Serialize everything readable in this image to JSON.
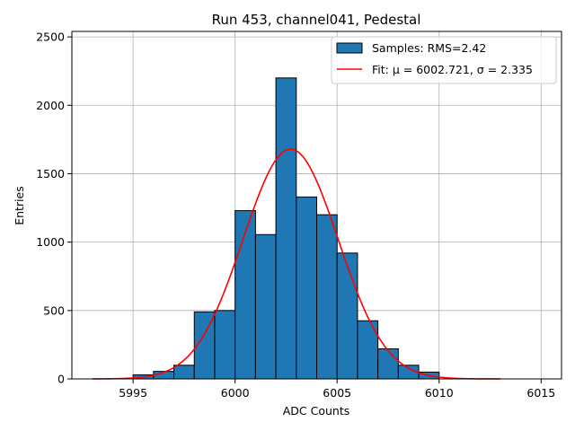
{
  "chart_data": {
    "type": "bar",
    "title": "Run 453, channel041, Pedestal",
    "xlabel": "ADC Counts",
    "ylabel": "Entries",
    "xlim": [
      5992,
      6016
    ],
    "ylim": [
      0,
      2540
    ],
    "xticks": [
      5995,
      6000,
      6005,
      6010,
      6015
    ],
    "yticks": [
      0,
      500,
      1000,
      1500,
      2000,
      2500
    ],
    "grid": true,
    "legend_position": "top-right",
    "bins": [
      {
        "x0": 5995,
        "x1": 5996,
        "value": 30
      },
      {
        "x0": 5996,
        "x1": 5997,
        "value": 55
      },
      {
        "x0": 5997,
        "x1": 5998,
        "value": 100
      },
      {
        "x0": 5998,
        "x1": 5999,
        "value": 490
      },
      {
        "x0": 5999,
        "x1": 6000,
        "value": 500
      },
      {
        "x0": 6000,
        "x1": 6001,
        "value": 1230
      },
      {
        "x0": 6001,
        "x1": 6002,
        "value": 1055
      },
      {
        "x0": 6002,
        "x1": 6003,
        "value": 2200
      },
      {
        "x0": 6003,
        "x1": 6004,
        "value": 1330
      },
      {
        "x0": 6004,
        "x1": 6005,
        "value": 1200
      },
      {
        "x0": 6005,
        "x1": 6006,
        "value": 920
      },
      {
        "x0": 6006,
        "x1": 6007,
        "value": 425
      },
      {
        "x0": 6007,
        "x1": 6008,
        "value": 220
      },
      {
        "x0": 6008,
        "x1": 6009,
        "value": 100
      },
      {
        "x0": 6009,
        "x1": 6010,
        "value": 50
      }
    ],
    "series": [
      {
        "name": "Samples: RMS=2.42",
        "kind": "histogram",
        "color": "#1f77b4",
        "edgecolor": "#000000"
      },
      {
        "name": "Fit: μ = 6002.721, σ = 2.335",
        "kind": "gaussian_fit",
        "color": "#ff0000",
        "mu": 6002.721,
        "sigma": 2.335,
        "amplitude": 1680,
        "x_range": [
          5993,
          6013
        ]
      }
    ]
  }
}
